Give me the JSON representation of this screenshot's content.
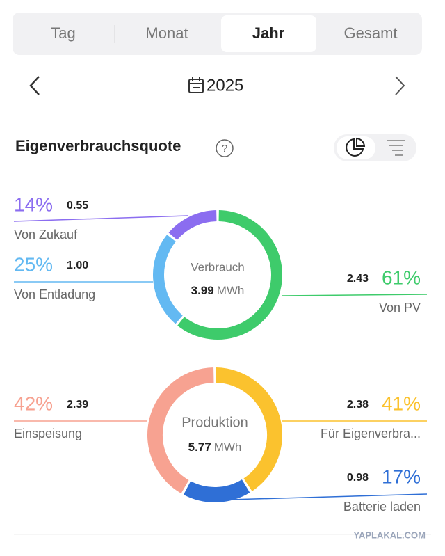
{
  "tabs": [
    "Tag",
    "Monat",
    "Jahr",
    "Gesamt"
  ],
  "selected_tab": "Jahr",
  "period": "2025",
  "section_title": "Eigenverbrauchsquote",
  "watermark": "YAPLAKAL.COM",
  "chart_data": [
    {
      "type": "donut",
      "center_label": "Verbrauch",
      "total": 3.99,
      "unit": "MWh",
      "categories": [
        "Von PV",
        "Von Entladung",
        "Von Zukauf"
      ],
      "values": [
        61,
        25,
        14
      ],
      "value_labels": [
        "61%",
        "25%",
        "14%"
      ],
      "amounts": [
        2.43,
        1.0,
        0.55
      ],
      "amount_labels": [
        "2.43",
        "1.00",
        "0.55"
      ],
      "colors": [
        "#3ecb6b",
        "#63b9f2",
        "#8b6df0"
      ]
    },
    {
      "type": "donut",
      "center_label": "Produktion",
      "total": 5.77,
      "unit": "MWh",
      "categories": [
        "Für Eigenverbra...",
        "Batterie laden",
        "Einspeisung"
      ],
      "values": [
        41,
        17,
        42
      ],
      "value_labels": [
        "41%",
        "17%",
        "42%"
      ],
      "amounts": [
        2.38,
        0.98,
        2.39
      ],
      "amount_labels": [
        "2.38",
        "0.98",
        "2.39"
      ],
      "colors": [
        "#fbc22e",
        "#2f6fd6",
        "#f7a291"
      ]
    }
  ]
}
